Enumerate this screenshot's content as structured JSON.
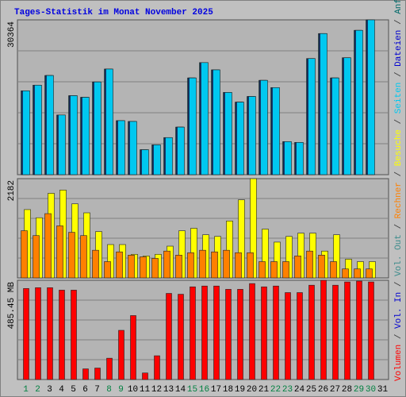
{
  "chart_data": [
    {
      "type": "bar",
      "title": "Tages-Statistik im Monat November 2025",
      "series": [
        {
          "name": "Anfragen",
          "color": "#006a6a",
          "values": [
            16447,
            17554,
            19452,
            11703,
            15498,
            15182,
            18187,
            20717,
            10596,
            10438,
            4903,
            5851,
            7275,
            9331,
            18977,
            21982,
            20559,
            16131,
            14233,
            15340,
            18503,
            17080,
            6484,
            6326,
            22773,
            27676,
            18977,
            22931,
            28308,
            30364,
            null
          ]
        },
        {
          "name": "Dateien",
          "color": "#0000d0",
          "values": [
            16447,
            17554,
            19452,
            11703,
            15498,
            15182,
            18187,
            20717,
            10596,
            10438,
            4903,
            5851,
            7275,
            9331,
            18977,
            21982,
            20559,
            16131,
            14233,
            15340,
            18503,
            17080,
            6484,
            6326,
            22773,
            27676,
            18977,
            22931,
            28308,
            30364,
            null
          ]
        },
        {
          "name": "Seiten",
          "color": "#00c8f0",
          "values": [
            16447,
            17554,
            19452,
            11703,
            15498,
            15182,
            18187,
            20717,
            10596,
            10438,
            4903,
            5851,
            7275,
            9331,
            18977,
            21982,
            20559,
            16131,
            14233,
            15340,
            18503,
            17080,
            6484,
            6326,
            22773,
            27676,
            18977,
            22931,
            28308,
            30364,
            null
          ]
        }
      ],
      "ylim": [
        0,
        30364
      ],
      "yticks": [
        30364
      ],
      "grid": true,
      "legend_separator": " / "
    },
    {
      "type": "bar",
      "series": [
        {
          "name": "Besuche",
          "color": "#ffff00",
          "values": [
            1502,
            1323,
            1860,
            1932,
            1628,
            1431,
            1019,
            733,
            733,
            519,
            483,
            519,
            698,
            1037,
            1091,
            948,
            912,
            1252,
            1717,
            2182,
            1073,
            787,
            912,
            984,
            984,
            590,
            948,
            411,
            358,
            358,
            null
          ]
        },
        {
          "name": "Rechner",
          "color": "#ff8000",
          "values": [
            1037,
            930,
            1413,
            1145,
            1002,
            930,
            608,
            358,
            572,
            501,
            465,
            429,
            590,
            501,
            554,
            608,
            572,
            608,
            554,
            554,
            358,
            358,
            358,
            483,
            590,
            501,
            358,
            197,
            197,
            197,
            null
          ]
        }
      ],
      "ylim": [
        0,
        2182
      ],
      "yticks": [
        2182
      ],
      "grid": true,
      "legend_separator": " / "
    },
    {
      "type": "bar",
      "categories": [
        "1",
        "2",
        "3",
        "4",
        "5",
        "6",
        "7",
        "8",
        "9",
        "10",
        "11",
        "12",
        "13",
        "14",
        "15",
        "16",
        "17",
        "18",
        "19",
        "20",
        "21",
        "22",
        "23",
        "24",
        "25",
        "26",
        "27",
        "28",
        "29",
        "30",
        "31"
      ],
      "category_colors": [
        "#008040",
        "#008040",
        "#000000",
        "#000000",
        "#000000",
        "#000000",
        "#000000",
        "#008040",
        "#008040",
        "#000000",
        "#000000",
        "#000000",
        "#000000",
        "#000000",
        "#008040",
        "#008040",
        "#000000",
        "#000000",
        "#000000",
        "#000000",
        "#000000",
        "#008040",
        "#008040",
        "#000000",
        "#000000",
        "#000000",
        "#000000",
        "#000000",
        "#008040",
        "#008040",
        "#000000"
      ],
      "series": [
        {
          "name": "Vol. Out",
          "color": "#3c8c8c",
          "values": [
            null,
            null,
            null,
            null,
            null,
            null,
            null,
            null,
            null,
            null,
            null,
            null,
            null,
            null,
            null,
            null,
            null,
            null,
            null,
            null,
            null,
            null,
            null,
            null,
            null,
            null,
            null,
            null,
            null,
            null,
            null
          ]
        },
        {
          "name": "Vol. In",
          "color": "#0000d0",
          "values": [
            null,
            null,
            null,
            null,
            null,
            null,
            null,
            null,
            null,
            null,
            null,
            null,
            null,
            null,
            null,
            null,
            null,
            null,
            null,
            null,
            null,
            null,
            null,
            null,
            null,
            null,
            null,
            null,
            null,
            null,
            null
          ]
        },
        {
          "name": "Volumen",
          "color": "#ff0000",
          "values": [
            445.3,
            449.3,
            449.3,
            437.3,
            437.3,
            52.2,
            56.2,
            104.3,
            240.7,
            312.9,
            32.1,
            116.3,
            421.3,
            417.2,
            453.4,
            457.4,
            457.4,
            441.3,
            441.3,
            469.4,
            453.4,
            457.4,
            425.3,
            425.3,
            461.4,
            485.45,
            461.4,
            477.4,
            481.4,
            477.4,
            null
          ]
        }
      ],
      "ylim": [
        0,
        485.45
      ],
      "yticks": [
        {
          "value": 485.45,
          "label": "485.45 MB"
        }
      ],
      "grid": true,
      "legend_separator": " / "
    }
  ]
}
